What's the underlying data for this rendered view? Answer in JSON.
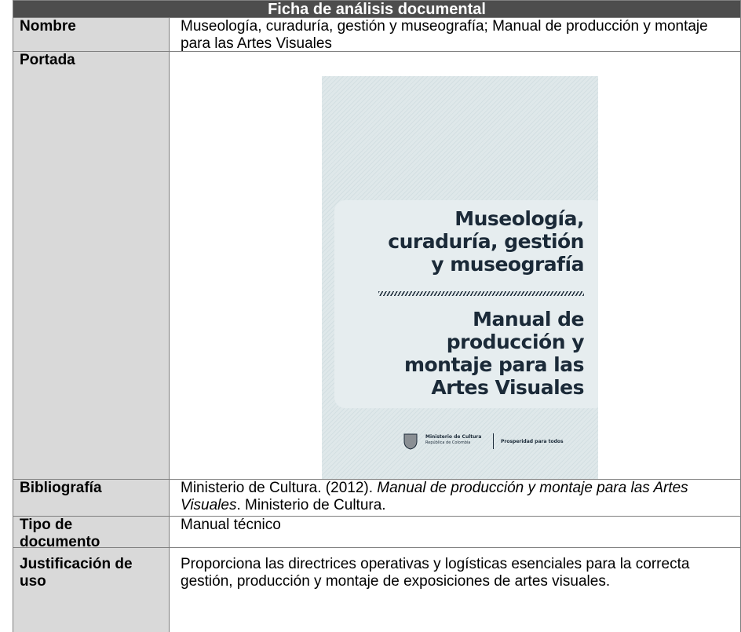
{
  "header": {
    "title": "Ficha de análisis documental"
  },
  "rows": [
    {
      "label": "Nombre",
      "value": "Museología, curaduría, gestión y museografía; Manual de producción y montaje para las Artes Visuales"
    },
    {
      "label": "Portada"
    },
    {
      "label": "Bibliografía",
      "value": [
        "Ministerio de Cultura. (2012). ",
        "Manual de producción y montaje para las Artes Visuales",
        ". Ministerio de Cultura."
      ]
    },
    {
      "label": "Tipo de documento",
      "value": "Manual técnico"
    },
    {
      "label": "Justificación de uso",
      "value": "Proporciona las directrices operativas y logísticas esenciales para la correcta gestión, producción y montaje de exposiciones de artes visuales."
    }
  ],
  "cover": {
    "title": [
      "Museología,",
      "curaduría, gestión",
      "y museografía"
    ],
    "subtitle": [
      "Manual de",
      "producción y",
      "montaje para las",
      "Artes Visuales"
    ],
    "ministry": "Ministerio de Cultura",
    "country": "República de Colombia",
    "slogan": "Prosperidad para todos"
  }
}
